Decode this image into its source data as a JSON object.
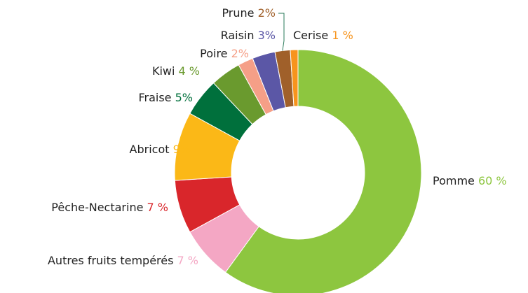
{
  "chart_data": {
    "type": "donut",
    "categories": [
      "Pomme",
      "Autres fruits tempérés",
      "Pêche-Nectarine",
      "Abricot",
      "Fraise",
      "Kiwi",
      "Poire",
      "Raisin",
      "Prune",
      "Cerise"
    ],
    "values": [
      60,
      7,
      7,
      9,
      5,
      4,
      2,
      3,
      2,
      1
    ],
    "value_labels": [
      "60 %",
      "7 %",
      "7 %",
      "9%",
      "5%",
      "4 %",
      "2%",
      "3%",
      "2%",
      "1 %"
    ],
    "colors": [
      "#8dc63f",
      "#f4a7c4",
      "#d9262b",
      "#fbb817",
      "#00703c",
      "#6a9a2e",
      "#f59f87",
      "#5b57a6",
      "#a0602a",
      "#f7941d"
    ]
  }
}
